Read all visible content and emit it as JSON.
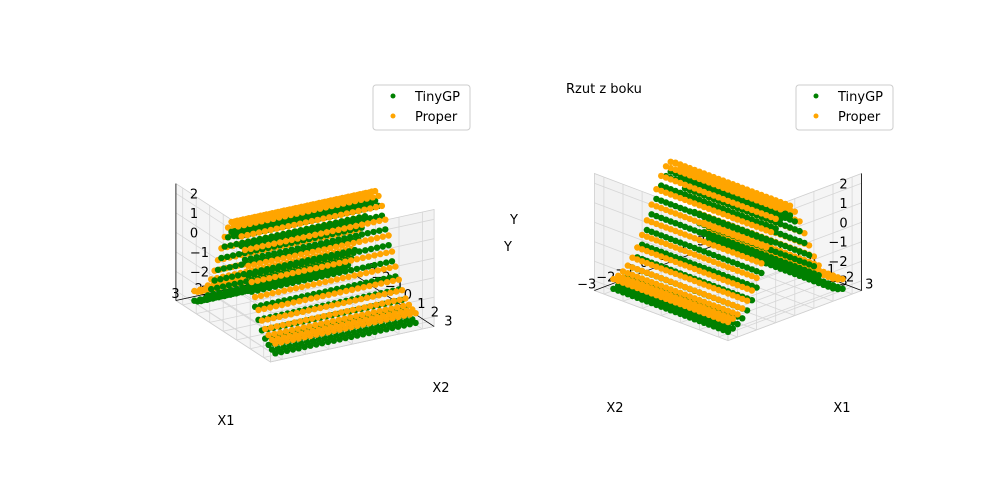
{
  "chart_data": [
    {
      "type": "scatter3d",
      "title": "",
      "xlabel": "X1",
      "ylabel": "X2",
      "zlabel": "Y",
      "xlim": [
        -3.5,
        3.5
      ],
      "ylim": [
        -3.5,
        3.5
      ],
      "zlim": [
        -3.5,
        2.5
      ],
      "xticks": [
        "−3",
        "−2",
        "−1",
        "0",
        "1",
        "2",
        "3"
      ],
      "yticks": [
        "−3",
        "−2",
        "−1",
        "0",
        "1",
        "2",
        "3"
      ],
      "zticks": [
        "−3",
        "−2",
        "−1",
        "0",
        "1",
        "2"
      ],
      "view": {
        "elev": 30,
        "azim": -60
      },
      "grid": true,
      "legend_position": "upper-right",
      "series": [
        {
          "name": "TinyGP",
          "color": "#008000",
          "surface": {
            "grid_range": [
              -3,
              3
            ],
            "grid_step": 0.25,
            "function": "bump_in_x1",
            "peak": 2.0,
            "base": -3.0,
            "offset": -0.5
          }
        },
        {
          "name": "Proper",
          "color": "#ffa500",
          "surface": {
            "grid_range": [
              -3,
              3
            ],
            "grid_step": 0.25,
            "function": "bump_in_x1",
            "peak": 2.0,
            "base": -3.0,
            "offset": 0.0
          }
        }
      ]
    },
    {
      "type": "scatter3d",
      "title": "Rzut z boku",
      "xlabel": "X1",
      "ylabel": "X2",
      "zlabel": "Y",
      "xlim": [
        -3.5,
        3.5
      ],
      "ylim": [
        -3.5,
        3.5
      ],
      "zlim": [
        -3.5,
        2.5
      ],
      "xticks": [
        "−3",
        "−2",
        "−1",
        "0",
        "1",
        "2",
        "3"
      ],
      "yticks": [
        "−3",
        "−2",
        "−1",
        "0",
        "1",
        "2",
        "3"
      ],
      "zticks": [
        "−3",
        "−2",
        "−1",
        "0",
        "1",
        "2"
      ],
      "view": {
        "elev": 30,
        "azim": 45
      },
      "grid": true,
      "legend_position": "upper-right",
      "series": [
        {
          "name": "TinyGP",
          "color": "#008000",
          "surface": {
            "grid_range": [
              -3,
              3
            ],
            "grid_step": 0.25,
            "function": "bump_in_x1",
            "peak": 2.0,
            "base": -3.0,
            "offset": -0.5
          }
        },
        {
          "name": "Proper",
          "color": "#ffa500",
          "surface": {
            "grid_range": [
              -3,
              3
            ],
            "grid_step": 0.25,
            "function": "bump_in_x1",
            "peak": 2.0,
            "base": -3.0,
            "offset": 0.0
          }
        }
      ]
    }
  ]
}
